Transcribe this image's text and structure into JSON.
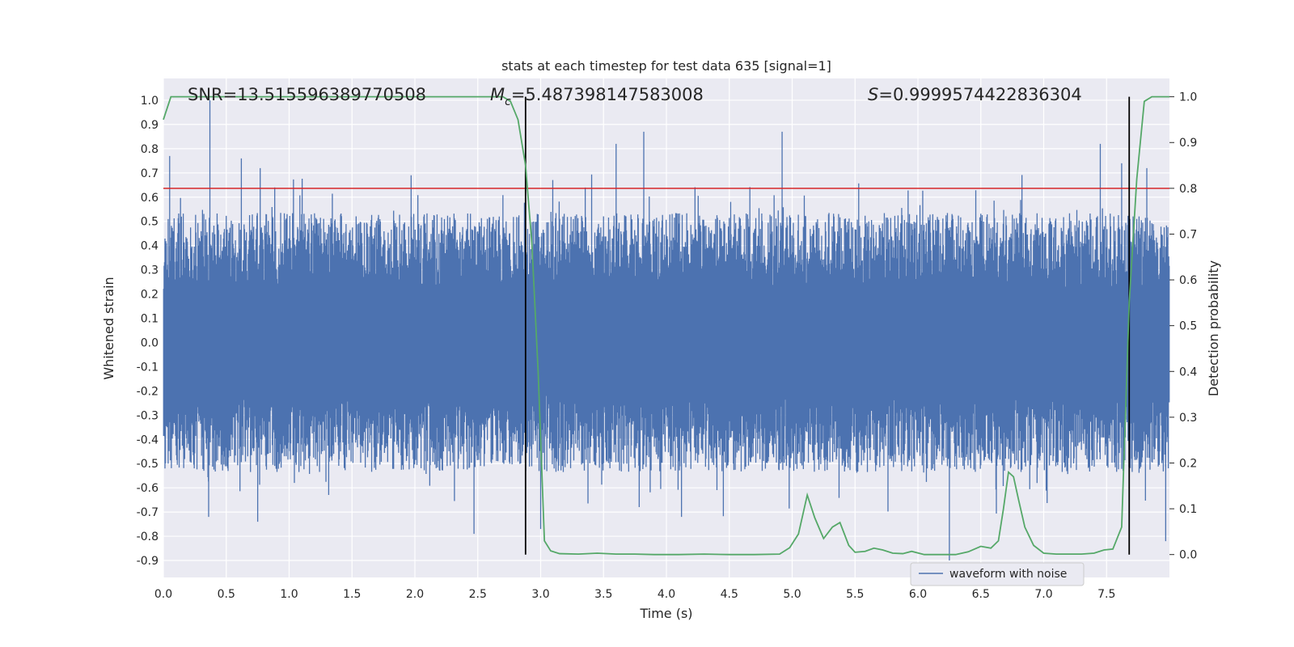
{
  "chart_data": {
    "type": "line",
    "title": "stats at each timestep for test data 635 [signal=1]",
    "xlabel": "Time (s)",
    "ylabel": "Whitened strain",
    "y2label": "Detection probability",
    "xlim": [
      0.0,
      8.0
    ],
    "ylim": [
      -0.97,
      1.09
    ],
    "y2lim": [
      -0.05,
      1.04
    ],
    "x_ticks": [
      "0.0",
      "0.5",
      "1.0",
      "1.5",
      "2.0",
      "2.5",
      "3.0",
      "3.5",
      "4.0",
      "4.5",
      "5.0",
      "5.5",
      "6.0",
      "6.5",
      "7.0",
      "7.5"
    ],
    "y_ticks": [
      "1.0",
      "0.9",
      "0.8",
      "0.7",
      "0.6",
      "0.5",
      "0.4",
      "0.3",
      "0.2",
      "0.1",
      "0.0",
      "-0.1",
      "-0.2",
      "-0.3",
      "-0.4",
      "-0.5",
      "-0.6",
      "-0.7",
      "-0.8",
      "-0.9"
    ],
    "y2_ticks": [
      "1.0",
      "0.9",
      "0.8",
      "0.7",
      "0.6",
      "0.5",
      "0.4",
      "0.3",
      "0.2",
      "0.1",
      "0.0"
    ],
    "grid": true,
    "legend_position": "bottom-right",
    "annotations": {
      "snr_label": "SNR",
      "snr_value": "=13.515596389770508",
      "mc_symbol": "M",
      "mc_sub": "c",
      "mc_value": "=5.487398147583008",
      "s_symbol": "S",
      "s_value": "=0.9999574422836304"
    },
    "threshold_line": {
      "y2": 0.8,
      "color": "#d62728"
    },
    "vertical_lines": [
      2.88,
      7.68
    ],
    "series": [
      {
        "name": "waveform with noise",
        "axis": "left",
        "color": "#4c72b0",
        "style": "dense-noise",
        "envelope_typical": 0.35,
        "peaks": [
          {
            "x": 0.05,
            "y": 0.77
          },
          {
            "x": 0.37,
            "y": 1.0
          },
          {
            "x": 0.62,
            "y": 0.76
          },
          {
            "x": 0.77,
            "y": 0.72
          },
          {
            "x": 1.97,
            "y": 0.69
          },
          {
            "x": 3.6,
            "y": 0.82
          },
          {
            "x": 3.82,
            "y": 0.87
          },
          {
            "x": 4.92,
            "y": 0.87
          },
          {
            "x": 7.45,
            "y": 0.82
          },
          {
            "x": 7.62,
            "y": 0.74
          },
          {
            "x": 7.82,
            "y": 0.72
          },
          {
            "x": 0.36,
            "y": -0.72
          },
          {
            "x": 0.75,
            "y": -0.74
          },
          {
            "x": 2.47,
            "y": -0.79
          },
          {
            "x": 3.0,
            "y": -0.77
          },
          {
            "x": 4.12,
            "y": -0.72
          },
          {
            "x": 6.25,
            "y": -0.9
          },
          {
            "x": 7.97,
            "y": -0.82
          }
        ]
      },
      {
        "name": "",
        "axis": "right",
        "color": "#55a868",
        "x": [
          0.0,
          0.06,
          0.5,
          1.0,
          1.5,
          2.0,
          2.5,
          2.7,
          2.76,
          2.82,
          2.88,
          2.93,
          2.98,
          3.03,
          3.08,
          3.15,
          3.3,
          3.45,
          3.6,
          3.75,
          3.9,
          4.1,
          4.3,
          4.5,
          4.7,
          4.9,
          4.98,
          5.05,
          5.12,
          5.18,
          5.25,
          5.32,
          5.38,
          5.45,
          5.5,
          5.58,
          5.65,
          5.72,
          5.8,
          5.88,
          5.95,
          6.05,
          6.15,
          6.3,
          6.4,
          6.5,
          6.58,
          6.64,
          6.68,
          6.72,
          6.76,
          6.8,
          6.85,
          6.92,
          7.0,
          7.1,
          7.2,
          7.3,
          7.4,
          7.48,
          7.55,
          7.62,
          7.68,
          7.74,
          7.8,
          7.86,
          7.92,
          8.0
        ],
        "y": [
          0.95,
          1.0,
          1.0,
          1.0,
          1.0,
          1.0,
          1.0,
          1.0,
          0.99,
          0.95,
          0.85,
          0.68,
          0.4,
          0.03,
          0.008,
          0.002,
          0.001,
          0.003,
          0.001,
          0.001,
          0.0,
          0.0,
          0.001,
          0.0,
          0.0,
          0.001,
          0.015,
          0.045,
          0.13,
          0.08,
          0.035,
          0.06,
          0.07,
          0.02,
          0.005,
          0.007,
          0.014,
          0.01,
          0.003,
          0.002,
          0.007,
          0.0,
          0.0,
          0.0,
          0.006,
          0.018,
          0.014,
          0.03,
          0.1,
          0.18,
          0.17,
          0.12,
          0.06,
          0.02,
          0.003,
          0.001,
          0.001,
          0.001,
          0.003,
          0.01,
          0.012,
          0.06,
          0.55,
          0.82,
          0.99,
          1.0,
          1.0,
          1.0
        ]
      }
    ]
  }
}
